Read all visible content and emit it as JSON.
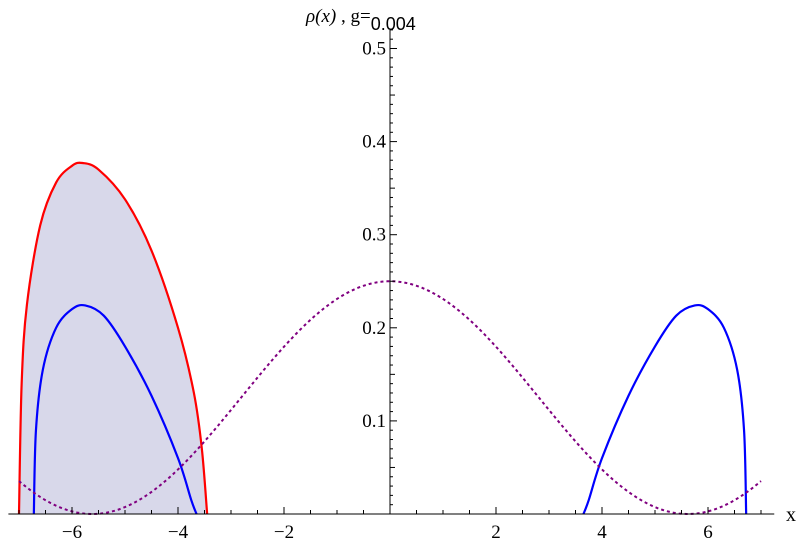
{
  "chart_data": {
    "type": "area",
    "title": {
      "rho": "ρ(x)",
      "sep": " , g=",
      "g": "0.004"
    },
    "xlabel": "x",
    "ylabel": "",
    "xlim": [
      -7.2,
      7.25
    ],
    "ylim": [
      0,
      0.52
    ],
    "x_ticks": [
      {
        "value": -6,
        "label": "−6"
      },
      {
        "value": -4,
        "label": "−4"
      },
      {
        "value": -2,
        "label": "−2"
      },
      {
        "value": 2,
        "label": "2"
      },
      {
        "value": 4,
        "label": "4"
      },
      {
        "value": 6,
        "label": "6"
      }
    ],
    "y_ticks": [
      {
        "value": 0.1,
        "label": "0.1"
      },
      {
        "value": 0.2,
        "label": "0.2"
      },
      {
        "value": 0.3,
        "label": "0.3"
      },
      {
        "value": 0.4,
        "label": "0.4"
      },
      {
        "value": 0.5,
        "label": "0.5"
      }
    ],
    "grid": false,
    "series": [
      {
        "style": "solid",
        "color": "#ff0000",
        "fill": "#d8d8ea",
        "filled": true,
        "support": [
          -7.0,
          -3.45
        ],
        "peak": {
          "x": -5.8,
          "y": 0.377
        },
        "points": [
          [
            -7.0,
            0.0
          ],
          [
            -6.95,
            0.14
          ],
          [
            -6.85,
            0.225
          ],
          [
            -6.6,
            0.31
          ],
          [
            -6.3,
            0.356
          ],
          [
            -6.0,
            0.374
          ],
          [
            -5.8,
            0.377
          ],
          [
            -5.5,
            0.37
          ],
          [
            -5.0,
            0.338
          ],
          [
            -4.5,
            0.283
          ],
          [
            -4.0,
            0.2
          ],
          [
            -3.7,
            0.13
          ],
          [
            -3.55,
            0.07
          ],
          [
            -3.45,
            0.0
          ]
        ]
      },
      {
        "style": "solid",
        "color": "#0000ff",
        "filled": false,
        "support": [
          -6.72,
          -3.65
        ],
        "peak": {
          "x": -5.75,
          "y": 0.224
        },
        "points": [
          [
            -6.72,
            0.0
          ],
          [
            -6.68,
            0.09
          ],
          [
            -6.55,
            0.155
          ],
          [
            -6.3,
            0.2
          ],
          [
            -6.0,
            0.22
          ],
          [
            -5.75,
            0.224
          ],
          [
            -5.4,
            0.213
          ],
          [
            -5.0,
            0.18
          ],
          [
            -4.5,
            0.127
          ],
          [
            -4.0,
            0.06
          ],
          [
            -3.75,
            0.015
          ],
          [
            -3.65,
            0.0
          ]
        ]
      },
      {
        "style": "solid",
        "color": "#0000ff",
        "filled": false,
        "support": [
          3.65,
          6.72
        ],
        "peak": {
          "x": 5.75,
          "y": 0.224
        },
        "points": [
          [
            3.65,
            0.0
          ],
          [
            3.75,
            0.015
          ],
          [
            4.0,
            0.06
          ],
          [
            4.5,
            0.127
          ],
          [
            5.0,
            0.18
          ],
          [
            5.4,
            0.213
          ],
          [
            5.75,
            0.224
          ],
          [
            6.0,
            0.22
          ],
          [
            6.3,
            0.2
          ],
          [
            6.55,
            0.155
          ],
          [
            6.68,
            0.09
          ],
          [
            6.72,
            0.0
          ]
        ]
      },
      {
        "style": "dotted",
        "color": "#800080",
        "filled": false,
        "function": "0.125*(1+cos(pi*x/5.62))",
        "domain": [
          -7.0,
          7.0
        ]
      }
    ]
  }
}
